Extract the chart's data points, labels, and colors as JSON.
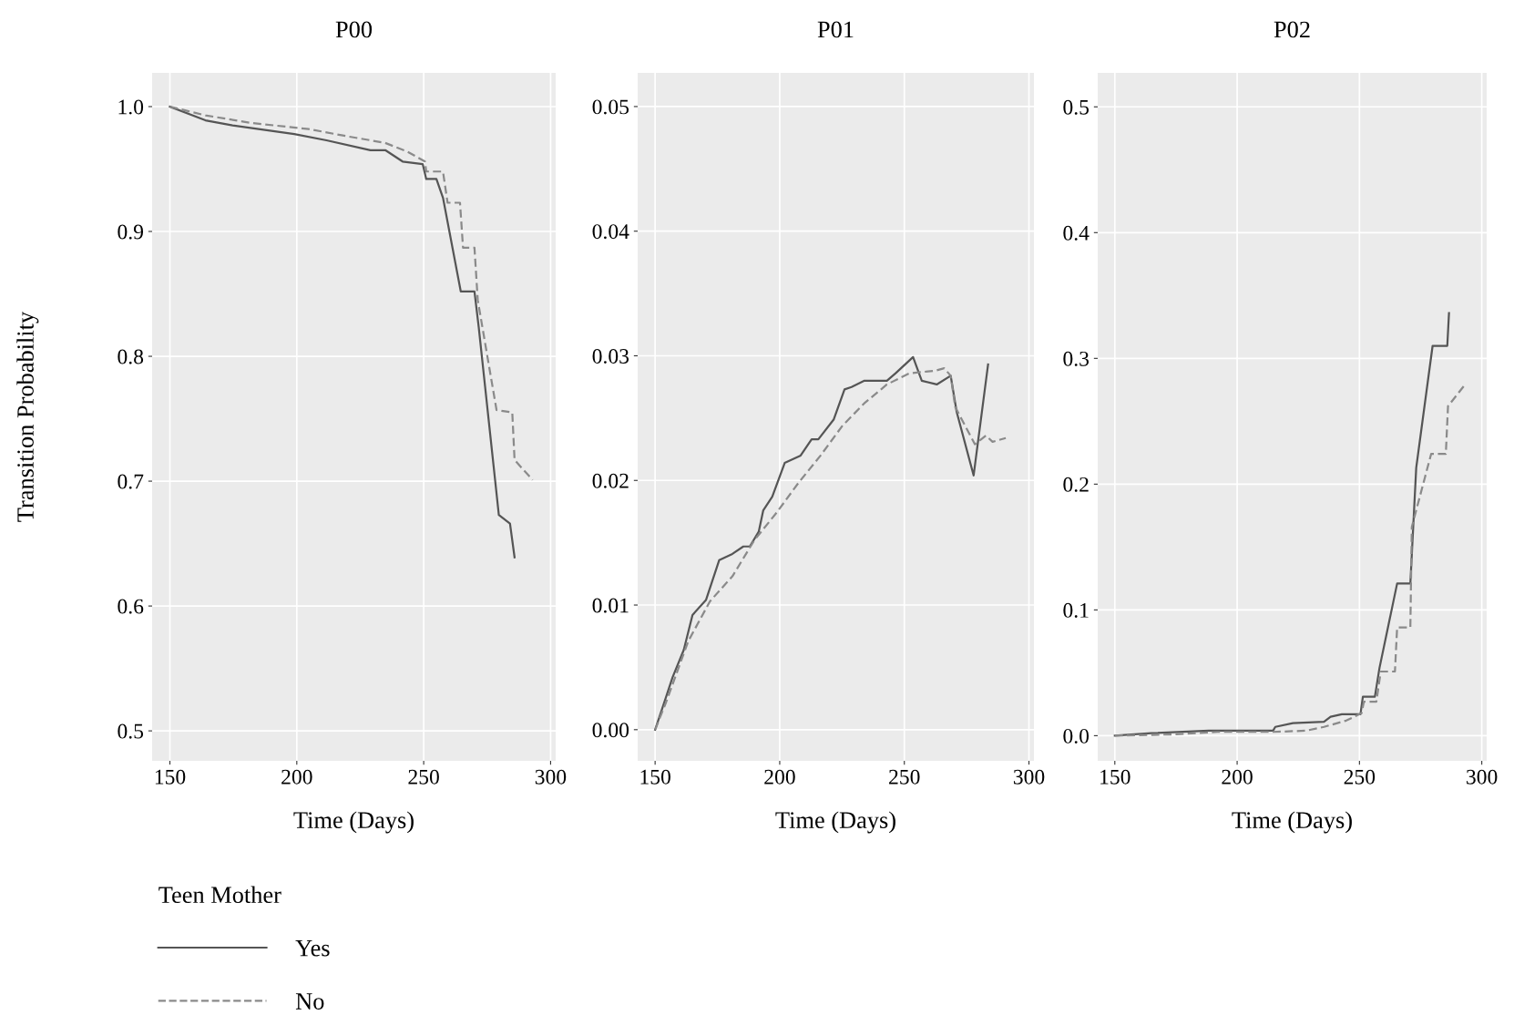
{
  "chart_data": [
    {
      "type": "line",
      "title": "P00",
      "xlabel": "Time (Days)",
      "ylabel": "Transition Probability",
      "legend_title": "Teen Mother",
      "legend": "bottom",
      "grid": true,
      "xlim": [
        143,
        302
      ],
      "xticks": [
        150,
        200,
        250,
        300
      ],
      "ylim": [
        0.476,
        1.027
      ],
      "yticks": [
        {
          "value": 0.5,
          "label": "0.5"
        },
        {
          "value": 0.6,
          "label": "0.6"
        },
        {
          "value": 0.7,
          "label": "0.7"
        },
        {
          "value": 0.8,
          "label": "0.8"
        },
        {
          "value": 0.9,
          "label": "0.9"
        },
        {
          "value": 1.0,
          "label": "1.0"
        }
      ],
      "series": [
        {
          "name": "Yes",
          "color": "#555555",
          "line_style": "solid",
          "x": [
            150,
            164,
            174.7,
            199,
            211.7,
            229,
            235,
            241.7,
            249.6,
            251,
            255,
            257.6,
            264.6,
            270,
            271.7,
            279.6,
            284,
            285.8
          ],
          "values": [
            1.0,
            0.989,
            0.985,
            0.978,
            0.973,
            0.965,
            0.965,
            0.956,
            0.954,
            0.942,
            0.942,
            0.927,
            0.852,
            0.852,
            0.823,
            0.673,
            0.666,
            0.639
          ]
        },
        {
          "name": "No",
          "color": "#8a8a8a",
          "line_style": "dashed",
          "x": [
            150,
            164,
            181.7,
            204.7,
            220.5,
            234.7,
            243.5,
            250.5,
            251,
            257.6,
            259.4,
            264.3,
            265.5,
            270,
            271.3,
            278.7,
            284.9,
            285.8,
            292.9
          ],
          "values": [
            1.0,
            0.993,
            0.987,
            0.982,
            0.976,
            0.971,
            0.964,
            0.956,
            0.948,
            0.948,
            0.923,
            0.923,
            0.887,
            0.887,
            0.845,
            0.757,
            0.755,
            0.717,
            0.701
          ]
        }
      ]
    },
    {
      "type": "line",
      "title": "P01",
      "xlabel": "Time (Days)",
      "grid": true,
      "xlim": [
        143,
        302
      ],
      "xticks": [
        150,
        200,
        250,
        300
      ],
      "ylim": [
        -0.0025,
        0.0527
      ],
      "yticks": [
        {
          "value": 0,
          "label": "0.00"
        },
        {
          "value": 0.01,
          "label": "0.01"
        },
        {
          "value": 0.02,
          "label": "0.02"
        },
        {
          "value": 0.03,
          "label": "0.03"
        },
        {
          "value": 0.04,
          "label": "0.04"
        },
        {
          "value": 0.05,
          "label": "0.05"
        }
      ],
      "series": [
        {
          "color": "#555555",
          "line_style": "solid",
          "x": [
            150,
            152.7,
            157,
            161.5,
            165,
            170.4,
            175.7,
            181,
            185.4,
            188,
            191.6,
            193.4,
            197,
            202,
            208.4,
            212.8,
            215.5,
            221.7,
            226,
            228.8,
            234,
            243,
            246.5,
            253.5,
            257,
            263,
            268.6,
            271,
            277.8,
            283.6
          ],
          "values": [
            0,
            0.0016,
            0.0042,
            0.0064,
            0.0092,
            0.0104,
            0.0136,
            0.0141,
            0.0147,
            0.0147,
            0.0159,
            0.0176,
            0.0187,
            0.0214,
            0.022,
            0.0233,
            0.0233,
            0.0249,
            0.0273,
            0.0275,
            0.028,
            0.028,
            0.0286,
            0.0299,
            0.028,
            0.0277,
            0.0284,
            0.0255,
            0.0204,
            0.0293
          ]
        },
        {
          "color": "#8a8a8a",
          "line_style": "dashed",
          "x": [
            150,
            154.4,
            163.3,
            172,
            181,
            189.8,
            198.7,
            207.5,
            216.4,
            225.2,
            234,
            243,
            252,
            262.4,
            266,
            268.6,
            270.4,
            278.3,
            282.7,
            285.4,
            290.7
          ],
          "values": [
            0,
            0.0022,
            0.0071,
            0.0103,
            0.0123,
            0.0152,
            0.0174,
            0.0198,
            0.022,
            0.0244,
            0.0262,
            0.0277,
            0.0286,
            0.0288,
            0.029,
            0.0284,
            0.0259,
            0.0229,
            0.0236,
            0.0231,
            0.0234
          ]
        }
      ]
    },
    {
      "type": "line",
      "title": "P02",
      "xlabel": "Time (Days)",
      "grid": true,
      "xlim": [
        143,
        302
      ],
      "xticks": [
        150,
        200,
        250,
        300
      ],
      "ylim": [
        -0.02,
        0.527
      ],
      "yticks": [
        {
          "value": 0,
          "label": "0.0"
        },
        {
          "value": 0.1,
          "label": "0.1"
        },
        {
          "value": 0.2,
          "label": "0.2"
        },
        {
          "value": 0.3,
          "label": "0.3"
        },
        {
          "value": 0.4,
          "label": "0.4"
        },
        {
          "value": 0.5,
          "label": "0.5"
        }
      ],
      "series": [
        {
          "color": "#555555",
          "line_style": "solid",
          "x": [
            150,
            164.9,
            188.4,
            214.7,
            215.6,
            222.8,
            235.5,
            238.2,
            242.8,
            250.4,
            251.4,
            256.3,
            258.2,
            265.4,
            270.8,
            273.2,
            279.9,
            285.9,
            286.6
          ],
          "values": [
            0,
            0.002,
            0.004,
            0.004,
            0.007,
            0.01,
            0.011,
            0.015,
            0.017,
            0.017,
            0.031,
            0.031,
            0.054,
            0.121,
            0.121,
            0.213,
            0.31,
            0.31,
            0.336
          ]
        },
        {
          "color": "#8a8a8a",
          "line_style": "dashed",
          "x": [
            150,
            173.9,
            192,
            214.7,
            228.3,
            235.5,
            244.6,
            250.9,
            251.8,
            256.9,
            258.7,
            264.5,
            265.4,
            270.8,
            271.4,
            279.3,
            285.3,
            286.2,
            293.5
          ],
          "values": [
            0,
            0.001,
            0.003,
            0.003,
            0.004,
            0.007,
            0.012,
            0.018,
            0.027,
            0.027,
            0.051,
            0.051,
            0.086,
            0.086,
            0.166,
            0.224,
            0.224,
            0.262,
            0.28
          ]
        }
      ]
    }
  ]
}
